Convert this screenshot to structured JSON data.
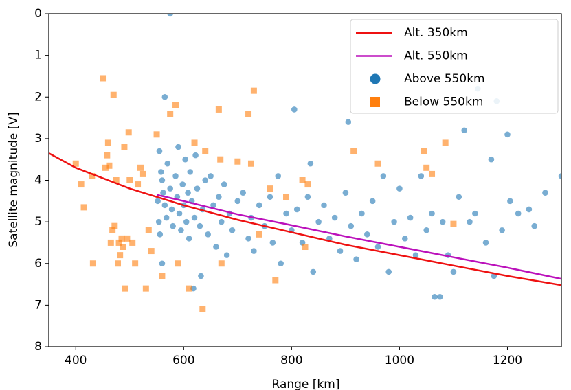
{
  "chart_data": {
    "type": "scatter",
    "xlabel": "Range [km]",
    "ylabel": "Satellite magnitude [V]",
    "xlim": [
      350,
      1300
    ],
    "xticks": [
      400,
      600,
      800,
      1000,
      1200
    ],
    "ylim": [
      8,
      0
    ],
    "yticks": [
      0,
      1,
      2,
      3,
      4,
      5,
      6,
      7,
      8
    ],
    "legend": "upper right",
    "series": [
      {
        "name": "Alt. 350km",
        "marker": "line",
        "color": "#ee1111",
        "x": [
          350,
          400,
          500,
          600,
          700,
          800,
          900,
          1000,
          1100,
          1200,
          1300
        ],
        "values": [
          3.35,
          3.7,
          4.2,
          4.6,
          4.95,
          5.25,
          5.55,
          5.8,
          6.05,
          6.3,
          6.52
        ]
      },
      {
        "name": "Alt. 550km",
        "marker": "line",
        "color": "#bb11bb",
        "x": [
          550,
          600,
          700,
          800,
          900,
          1000,
          1100,
          1200,
          1300
        ],
        "values": [
          4.35,
          4.5,
          4.82,
          5.08,
          5.35,
          5.6,
          5.85,
          6.1,
          6.37
        ]
      },
      {
        "name": "Above 550km",
        "marker": "circle",
        "color": "#1f77b4",
        "x": [
          555,
          558,
          560,
          562,
          565,
          568,
          552,
          554,
          556,
          560,
          565,
          570,
          575,
          578,
          580,
          585,
          588,
          590,
          592,
          595,
          598,
          600,
          603,
          605,
          608,
          610,
          612,
          615,
          618,
          620,
          622,
          625,
          630,
          632,
          635,
          640,
          645,
          650,
          655,
          660,
          665,
          670,
          675,
          680,
          685,
          690,
          700,
          710,
          720,
          725,
          730,
          740,
          750,
          760,
          765,
          775,
          780,
          790,
          800,
          805,
          810,
          820,
          830,
          835,
          840,
          850,
          860,
          870,
          880,
          890,
          900,
          905,
          910,
          920,
          930,
          940,
          950,
          960,
          970,
          980,
          990,
          1000,
          1010,
          1020,
          1030,
          1040,
          1050,
          1060,
          1065,
          1075,
          1080,
          1090,
          1100,
          1110,
          1120,
          1130,
          1140,
          1145,
          1160,
          1170,
          1175,
          1180,
          1190,
          1200,
          1205,
          1220,
          1240,
          1250,
          1270,
          1300,
          575
        ],
        "values": [
          3.3,
          3.8,
          4.0,
          4.3,
          4.6,
          4.9,
          4.5,
          5.0,
          5.3,
          6.0,
          2.0,
          3.6,
          4.2,
          4.7,
          5.1,
          3.9,
          4.4,
          3.2,
          4.8,
          5.2,
          4.1,
          4.6,
          3.5,
          5.0,
          4.3,
          5.4,
          3.8,
          4.5,
          6.6,
          4.9,
          3.4,
          4.2,
          5.1,
          6.3,
          4.7,
          4.0,
          5.3,
          3.9,
          4.6,
          5.6,
          4.4,
          5.0,
          4.1,
          5.8,
          4.8,
          5.2,
          4.5,
          4.3,
          5.4,
          4.9,
          5.7,
          4.6,
          5.1,
          4.4,
          5.5,
          3.9,
          6.0,
          4.8,
          5.2,
          2.3,
          4.7,
          5.5,
          4.4,
          3.6,
          6.2,
          5.0,
          4.6,
          5.4,
          4.9,
          5.7,
          4.3,
          2.6,
          5.1,
          5.9,
          4.8,
          5.3,
          4.5,
          5.6,
          3.9,
          6.2,
          5.0,
          4.2,
          5.4,
          4.9,
          5.8,
          3.9,
          5.2,
          4.8,
          6.8,
          6.8,
          5.0,
          5.8,
          6.2,
          4.4,
          2.8,
          5.0,
          4.8,
          1.8,
          5.5,
          3.5,
          6.3,
          2.1,
          5.2,
          2.9,
          4.5,
          4.8,
          4.7,
          5.1,
          4.3,
          3.9,
          0.0
        ]
      },
      {
        "name": "Below 550km",
        "marker": "square",
        "color": "#ff7f0e",
        "x": [
          400,
          410,
          415,
          430,
          432,
          450,
          455,
          458,
          460,
          462,
          465,
          468,
          470,
          472,
          475,
          478,
          480,
          482,
          485,
          488,
          490,
          492,
          495,
          498,
          500,
          505,
          510,
          515,
          520,
          525,
          530,
          535,
          540,
          550,
          560,
          575,
          585,
          590,
          610,
          620,
          635,
          640,
          665,
          668,
          670,
          700,
          720,
          725,
          730,
          740,
          760,
          770,
          790,
          820,
          825,
          830,
          915,
          960,
          1045,
          1050,
          1060,
          1085,
          1100
        ],
        "values": [
          3.6,
          4.1,
          4.65,
          3.9,
          6.0,
          1.55,
          3.7,
          3.4,
          3.1,
          3.65,
          5.5,
          5.2,
          1.95,
          5.1,
          4.0,
          6.0,
          5.5,
          5.8,
          5.4,
          5.6,
          3.2,
          6.6,
          5.4,
          2.85,
          4.0,
          5.5,
          6.0,
          4.1,
          3.7,
          3.85,
          6.6,
          5.2,
          5.7,
          2.9,
          6.3,
          2.4,
          2.2,
          6.0,
          6.6,
          3.1,
          7.1,
          3.3,
          2.3,
          3.5,
          6.0,
          3.55,
          2.4,
          3.6,
          1.85,
          5.3,
          4.2,
          6.4,
          4.4,
          4.0,
          5.6,
          4.1,
          3.3,
          3.6,
          3.3,
          3.7,
          3.85,
          3.1,
          5.05
        ]
      }
    ]
  }
}
